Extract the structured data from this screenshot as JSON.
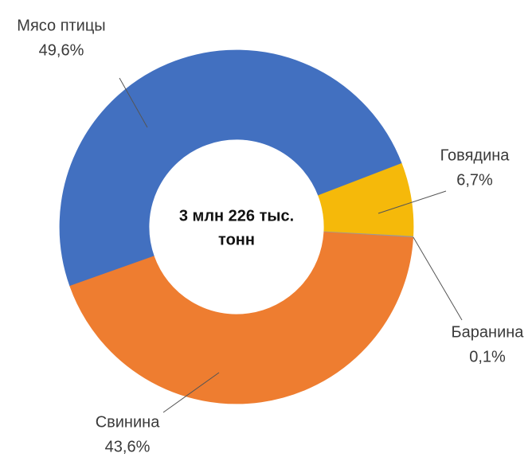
{
  "chart_data": {
    "type": "donut",
    "center_label": [
      "3 млн 226 тыс.",
      "тонн"
    ],
    "categories": [
      "Мясо птицы",
      "Говядина",
      "Баранина",
      "Свинина"
    ],
    "values": [
      49.6,
      6.7,
      0.1,
      43.6
    ],
    "value_labels": [
      "49,6%",
      "6,7%",
      "0,1%",
      "43,6%"
    ],
    "colors": [
      "#4270c0",
      "#f5b90a",
      "#9a9a9a",
      "#ee7d30"
    ]
  }
}
